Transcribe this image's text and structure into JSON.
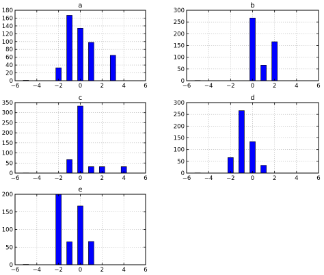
{
  "chart_data": [
    {
      "type": "bar",
      "title": "a",
      "xlim": [
        -6,
        6
      ],
      "ylim": [
        0,
        180
      ],
      "xticks": [
        -6,
        -4,
        -2,
        0,
        2,
        4,
        6
      ],
      "xtick_labels": [
        "−6",
        "−4",
        "−2",
        "0",
        "2",
        "4",
        "6"
      ],
      "yticks": [
        0,
        20,
        40,
        60,
        80,
        100,
        120,
        140,
        160,
        180
      ],
      "grid": true,
      "bar_width": 0.5,
      "bars": [
        {
          "x": -5,
          "value": 1
        },
        {
          "x": -2,
          "value": 33
        },
        {
          "x": -1,
          "value": 167
        },
        {
          "x": 0,
          "value": 134
        },
        {
          "x": 1,
          "value": 98
        },
        {
          "x": 3,
          "value": 65
        }
      ]
    },
    {
      "type": "bar",
      "title": "b",
      "xlim": [
        -6,
        6
      ],
      "ylim": [
        0,
        300
      ],
      "xticks": [
        -6,
        -4,
        -2,
        0,
        2,
        4,
        6
      ],
      "xtick_labels": [
        "−6",
        "−4",
        "−2",
        "0",
        "2",
        "4",
        "6"
      ],
      "yticks": [
        0,
        50,
        100,
        150,
        200,
        250,
        300
      ],
      "grid": true,
      "bar_width": 0.5,
      "bars": [
        {
          "x": -5,
          "value": 1
        },
        {
          "x": 0,
          "value": 267
        },
        {
          "x": 1,
          "value": 66
        },
        {
          "x": 2,
          "value": 166
        }
      ]
    },
    {
      "type": "bar",
      "title": "c",
      "xlim": [
        -6,
        6
      ],
      "ylim": [
        0,
        350
      ],
      "xticks": [
        -6,
        -4,
        -2,
        0,
        2,
        4,
        6
      ],
      "xtick_labels": [
        "−6",
        "−4",
        "−2",
        "0",
        "2",
        "4",
        "6"
      ],
      "yticks": [
        0,
        50,
        100,
        150,
        200,
        250,
        300,
        350
      ],
      "grid": true,
      "bar_width": 0.5,
      "bars": [
        {
          "x": -5,
          "value": 1
        },
        {
          "x": -1,
          "value": 67
        },
        {
          "x": 0,
          "value": 333
        },
        {
          "x": 1,
          "value": 32
        },
        {
          "x": 2,
          "value": 32
        },
        {
          "x": 4,
          "value": 32
        }
      ]
    },
    {
      "type": "bar",
      "title": "d",
      "xlim": [
        -6,
        6
      ],
      "ylim": [
        0,
        300
      ],
      "xticks": [
        -6,
        -4,
        -2,
        0,
        2,
        4,
        6
      ],
      "xtick_labels": [
        "−6",
        "−4",
        "−2",
        "0",
        "2",
        "4",
        "6"
      ],
      "yticks": [
        0,
        50,
        100,
        150,
        200,
        250,
        300
      ],
      "grid": true,
      "bar_width": 0.5,
      "bars": [
        {
          "x": -5,
          "value": 1
        },
        {
          "x": -2,
          "value": 66
        },
        {
          "x": -1,
          "value": 266
        },
        {
          "x": 0,
          "value": 134
        },
        {
          "x": 1,
          "value": 33
        }
      ]
    },
    {
      "type": "bar",
      "title": "e",
      "xlim": [
        -6,
        6
      ],
      "ylim": [
        0,
        200
      ],
      "xticks": [
        -6,
        -4,
        -2,
        0,
        2,
        4,
        6
      ],
      "xtick_labels": [
        "−6",
        "−4",
        "−2",
        "0",
        "2",
        "4",
        "6"
      ],
      "yticks": [
        0,
        50,
        100,
        150,
        200
      ],
      "grid": true,
      "bar_width": 0.5,
      "bars": [
        {
          "x": -5,
          "value": 1
        },
        {
          "x": -2,
          "value": 200
        },
        {
          "x": -1,
          "value": 65
        },
        {
          "x": 0,
          "value": 167
        },
        {
          "x": 1,
          "value": 66
        }
      ]
    }
  ]
}
